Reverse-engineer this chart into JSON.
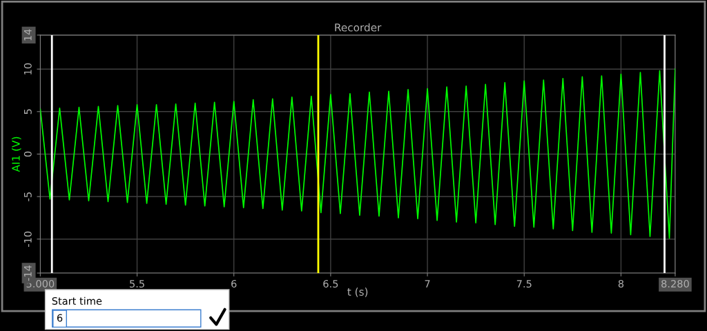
{
  "chart_data": {
    "type": "line",
    "title": "Recorder",
    "xlabel": "t (s)",
    "ylabel": "AI1 (V)",
    "x": [
      5.0,
      5.05,
      5.1,
      5.15,
      5.2,
      5.25,
      5.3,
      5.35,
      5.4,
      5.45,
      5.5,
      5.55,
      5.6,
      5.65,
      5.7,
      5.75,
      5.8,
      5.85,
      5.9,
      5.95,
      6.0,
      6.05,
      6.1,
      6.15,
      6.2,
      6.25,
      6.3,
      6.35,
      6.4,
      6.45,
      6.5,
      6.55,
      6.6,
      6.65,
      6.7,
      6.75,
      6.8,
      6.85,
      6.9,
      6.95,
      7.0,
      7.05,
      7.1,
      7.15,
      7.2,
      7.25,
      7.3,
      7.35,
      7.4,
      7.45,
      7.5,
      7.55,
      7.6,
      7.65,
      7.7,
      7.75,
      7.8,
      7.85,
      7.9,
      7.95,
      8.0,
      8.05,
      8.1,
      8.15,
      8.2,
      8.25,
      8.28
    ],
    "series": [
      {
        "color": "#00ff00",
        "values": [
          5.3,
          -5.3,
          5.4,
          -5.4,
          5.5,
          -5.5,
          5.6,
          -5.6,
          5.7,
          -5.7,
          5.8,
          -5.8,
          5.8,
          -5.9,
          5.9,
          -6.0,
          6.0,
          -6.1,
          6.1,
          -6.2,
          6.2,
          -6.3,
          6.4,
          -6.4,
          6.5,
          -6.6,
          6.7,
          -6.7,
          6.8,
          -6.9,
          7.0,
          -7.0,
          7.1,
          -7.2,
          7.3,
          -7.3,
          7.4,
          -7.5,
          7.6,
          -7.6,
          7.7,
          -7.8,
          7.9,
          -8.0,
          8.0,
          -8.1,
          8.2,
          -8.3,
          8.4,
          -8.5,
          8.6,
          -8.6,
          8.7,
          -8.8,
          8.9,
          -9.0,
          9.1,
          -9.2,
          9.2,
          -9.3,
          9.4,
          -9.5,
          9.6,
          -9.7,
          9.8,
          -9.9,
          10.0
        ]
      }
    ],
    "xlim": [
      5.0,
      8.28
    ],
    "ylim": [
      -14,
      14
    ],
    "xticks": [
      {
        "value": 5.0,
        "label": "5.000"
      },
      5.5,
      6,
      6.5,
      7,
      7.5,
      8,
      {
        "value": 8.28,
        "label": "8.280"
      }
    ],
    "yticks": [
      -14,
      -10,
      -5,
      0,
      5,
      10,
      14
    ],
    "grid": true,
    "legend": false,
    "marker": "none",
    "line_style": "solid",
    "ref_lines": [
      {
        "axis": "x",
        "value": 5.06,
        "color": "#ffffff"
      },
      {
        "axis": "x",
        "value": 8.225,
        "color": "#ffffff"
      },
      {
        "axis": "x",
        "value": 6.436,
        "color": "#ffff00"
      }
    ],
    "annotations": [
      "Start time",
      "6"
    ]
  }
}
